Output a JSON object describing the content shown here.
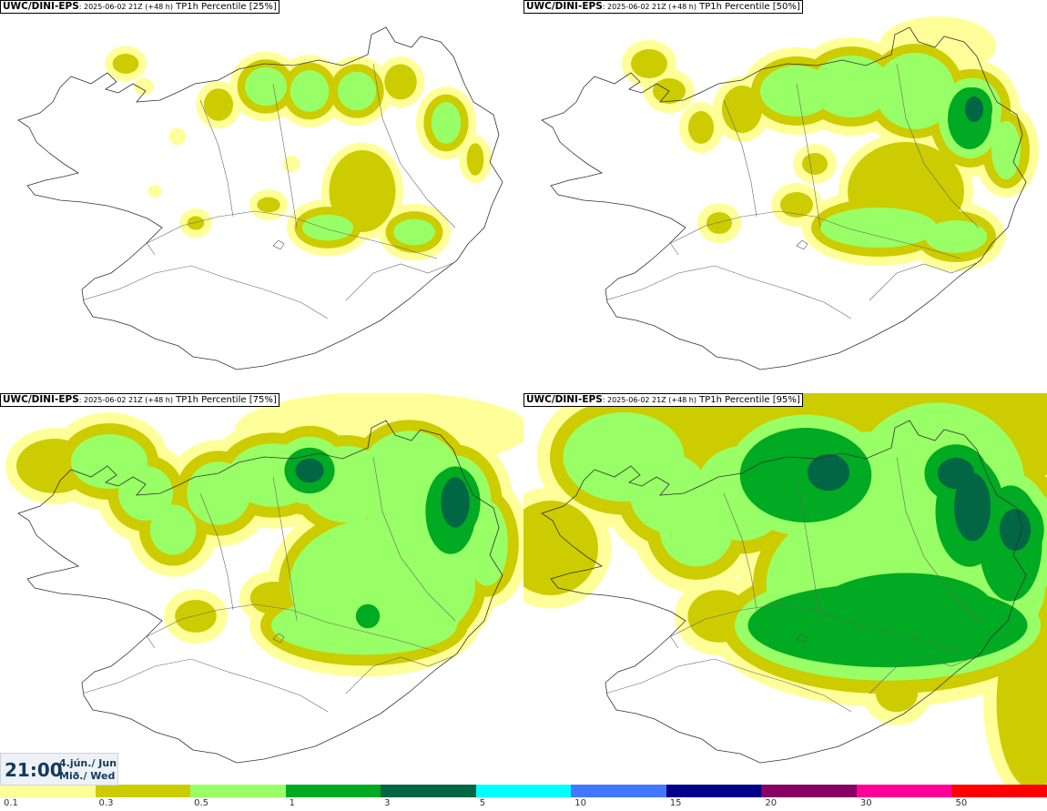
{
  "colors": {
    "c01": "#ffff99",
    "c03": "#cccc00",
    "c05": "#99ff66",
    "c1": "#00aa22",
    "c3": "#006644",
    "c5": "#00ffff",
    "c10": "#4477ff",
    "c15": "#000088",
    "c20": "#880066",
    "c30": "#ff0099",
    "c50": "#ff0000"
  },
  "panels": [
    {
      "source": "UWC/DINI-EPS",
      "run": ": 2025-06-02 21Z (+48 h)",
      "product": " TP1h Percentile [25%]",
      "percentile": 25
    },
    {
      "source": "UWC/DINI-EPS",
      "run": ": 2025-06-02 21Z (+48 h)",
      "product": " TP1h Percentile [50%]",
      "percentile": 50
    },
    {
      "source": "UWC/DINI-EPS",
      "run": ": 2025-06-02 21Z (+48 h)",
      "product": " TP1h Percentile [75%]",
      "percentile": 75
    },
    {
      "source": "UWC/DINI-EPS",
      "run": ": 2025-06-02 21Z (+48 h)",
      "product": " TP1h Percentile [95%]",
      "percentile": 95
    }
  ],
  "valid_time": {
    "time": "21:00",
    "date_line1": "4.jún./ Jun",
    "date_line2": "Mið./ Wed"
  },
  "legend": {
    "ticks": [
      "0.1",
      "0.3",
      "0.5",
      "1",
      "3",
      "5",
      "10",
      "15",
      "20",
      "30",
      "50"
    ],
    "colors": [
      "#ffff99",
      "#cccc00",
      "#99ff66",
      "#00aa22",
      "#006644",
      "#00ffff",
      "#4477ff",
      "#000088",
      "#880066",
      "#ff0099",
      "#ff0000"
    ]
  }
}
